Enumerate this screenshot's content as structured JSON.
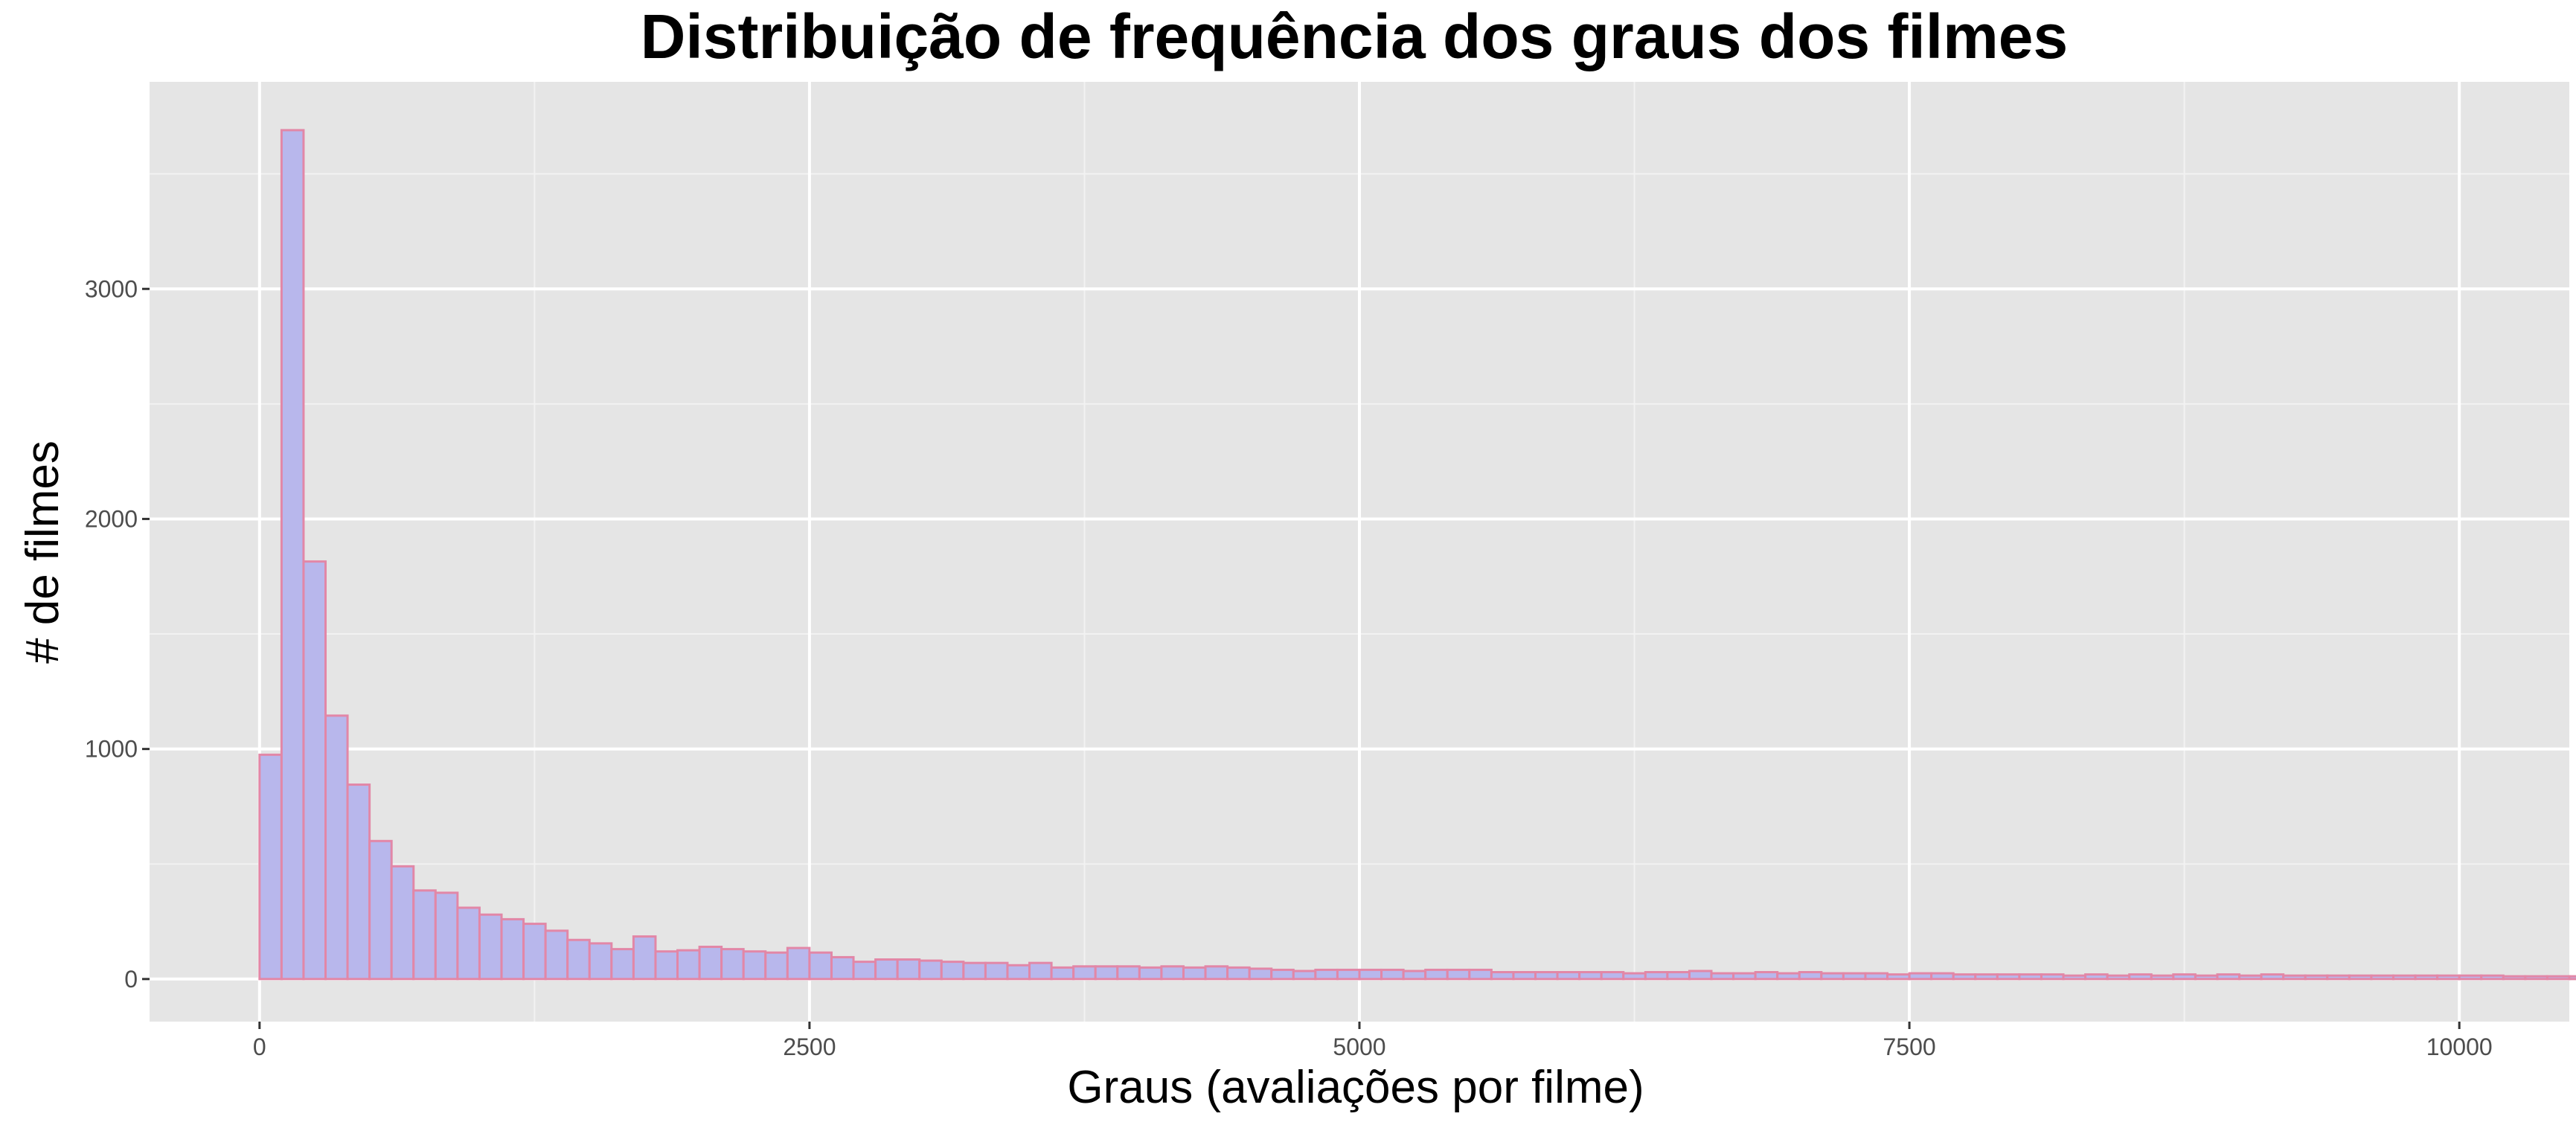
{
  "chart_data": {
    "type": "bar",
    "title": "Distribuição de frequência dos graus dos filmes",
    "xlabel": "Graus (avaliações por filme)",
    "ylabel": "# de filmes",
    "xlim": [
      -500,
      10500
    ],
    "ylim": [
      -185,
      3900
    ],
    "xticks": [
      0,
      2500,
      5000,
      7500,
      10000
    ],
    "xtick_labels": [
      "0",
      "2500",
      "5000",
      "7500",
      "10000"
    ],
    "yticks": [
      0,
      1000,
      2000,
      3000
    ],
    "ytick_labels": [
      "0",
      "1000",
      "2000",
      "3000"
    ],
    "grid": true,
    "bin_start": 0,
    "bin_width": 100,
    "values": [
      975,
      3690,
      1815,
      1145,
      845,
      600,
      490,
      385,
      375,
      310,
      280,
      260,
      240,
      210,
      170,
      155,
      130,
      185,
      120,
      125,
      140,
      130,
      120,
      115,
      135,
      115,
      95,
      75,
      85,
      85,
      80,
      75,
      70,
      70,
      60,
      70,
      50,
      55,
      55,
      55,
      50,
      55,
      50,
      55,
      50,
      45,
      40,
      35,
      40,
      40,
      40,
      40,
      35,
      40,
      40,
      40,
      30,
      30,
      30,
      30,
      30,
      30,
      25,
      30,
      30,
      35,
      25,
      25,
      30,
      25,
      30,
      25,
      25,
      25,
      20,
      25,
      25,
      20,
      20,
      20,
      20,
      20,
      15,
      20,
      15,
      20,
      15,
      20,
      15,
      20,
      15,
      20,
      15,
      15,
      15,
      15,
      15,
      15,
      15,
      15,
      15,
      15,
      12,
      12,
      12,
      12,
      10,
      10,
      10,
      10,
      8,
      8,
      8,
      8,
      8,
      6,
      6,
      6,
      6,
      5,
      5,
      5,
      5,
      4,
      4,
      4,
      4,
      3,
      3,
      3,
      3,
      2,
      2,
      2,
      2,
      2,
      2,
      2,
      2,
      2
    ]
  }
}
